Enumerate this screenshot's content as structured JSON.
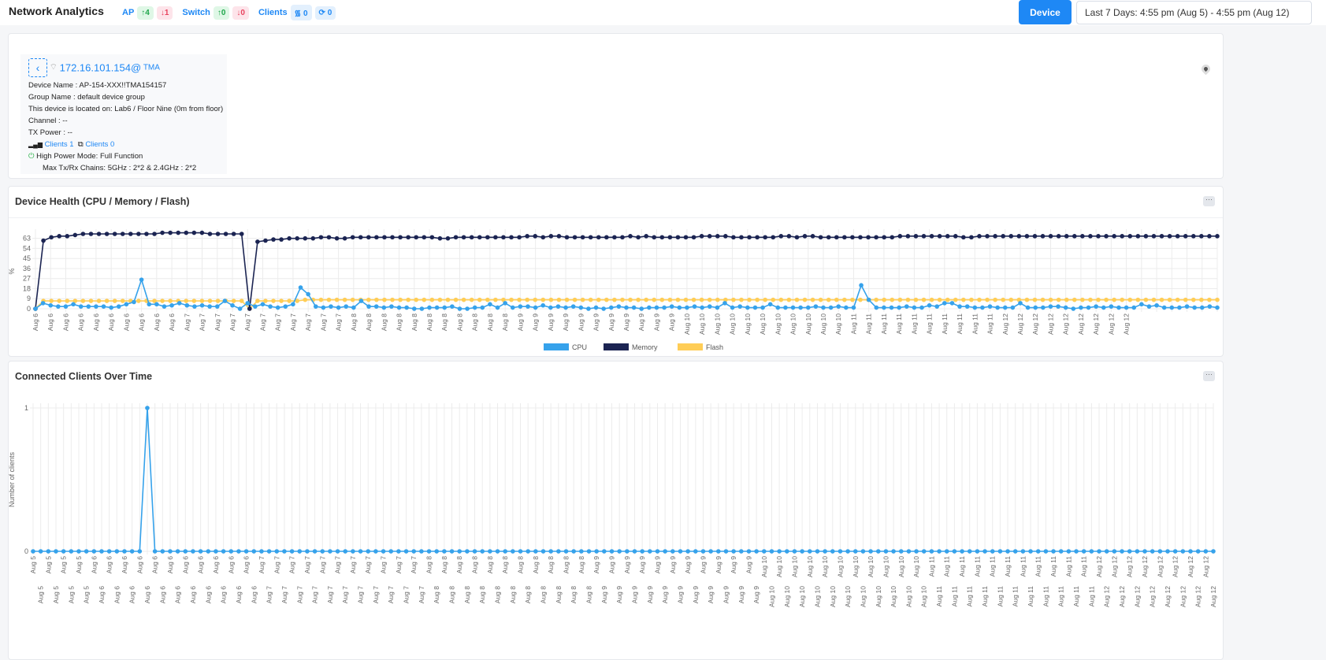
{
  "header": {
    "title": "Network Analytics",
    "ap_label": "AP",
    "ap_up": "4",
    "ap_down": "1",
    "switch_label": "Switch",
    "switch_up": "0",
    "switch_down": "0",
    "clients_label": "Clients",
    "clients_wifi": "0",
    "clients_wired": "0",
    "device_button": "Device",
    "date_range": "Last 7 Days: 4:55 pm (Aug 5) - 4:55 pm (Aug 12)"
  },
  "device": {
    "ip": "172.16.101.154@",
    "site": "TMA",
    "name": "Device Name : AP-154-XXX!!TMA154157",
    "group": "Group Name : default device group",
    "location": "This device is located on: Lab6 / Floor Nine (0m from floor)",
    "channel": "Channel : --",
    "tx_power": "TX Power : --",
    "wireless_clients": "Clients 1",
    "wired_clients": "Clients 0",
    "power_mode": "High Power Mode: Full Function",
    "chains": "Max Tx/Rx Chains: 5GHz : 2*2 & 2.4GHz : 2*2"
  },
  "health": {
    "title": "Device Health (CPU / Memory / Flash)",
    "more": "···"
  },
  "clients_chart": {
    "title": "Connected Clients Over Time",
    "more": "···"
  },
  "colors": {
    "accent": "#1e88f5",
    "cpu": "#36a2eb",
    "memory": "#1b2452",
    "flash": "#ffcd56"
  },
  "chart_data": [
    {
      "type": "line",
      "ylabel": "%",
      "yticks": [
        0,
        9,
        18,
        27,
        36,
        45,
        54,
        63
      ],
      "ylim": [
        0,
        67
      ],
      "grid": true,
      "legend": "bottom",
      "x_labels": [
        "Aug 6",
        "Aug 6",
        "Aug 6",
        "Aug 6",
        "Aug 6",
        "Aug 6",
        "Aug 6",
        "Aug 6",
        "Aug 6",
        "Aug 6",
        "Aug 7",
        "Aug 7",
        "Aug 7",
        "Aug 7",
        "Aug 7",
        "Aug 7",
        "Aug 7",
        "Aug 7",
        "Aug 7",
        "Aug 7",
        "Aug 7",
        "Aug 8",
        "Aug 8",
        "Aug 8",
        "Aug 8",
        "Aug 8",
        "Aug 8",
        "Aug 8",
        "Aug 8",
        "Aug 8",
        "Aug 8",
        "Aug 8",
        "Aug 9",
        "Aug 9",
        "Aug 9",
        "Aug 9",
        "Aug 9",
        "Aug 9",
        "Aug 9",
        "Aug 9",
        "Aug 9",
        "Aug 9",
        "Aug 9",
        "Aug 10",
        "Aug 10",
        "Aug 10",
        "Aug 10",
        "Aug 10",
        "Aug 10",
        "Aug 10",
        "Aug 10",
        "Aug 10",
        "Aug 10",
        "Aug 10",
        "Aug 11",
        "Aug 11",
        "Aug 11",
        "Aug 11",
        "Aug 11",
        "Aug 11",
        "Aug 11",
        "Aug 11",
        "Aug 11",
        "Aug 11",
        "Aug 12",
        "Aug 12",
        "Aug 12",
        "Aug 12",
        "Aug 12",
        "Aug 12",
        "Aug 12",
        "Aug 12",
        "Aug 12"
      ],
      "series": [
        {
          "name": "CPU",
          "values": [
            0,
            5,
            3,
            2,
            2,
            4,
            2,
            2,
            2,
            2,
            1,
            2,
            4,
            6,
            26,
            4,
            4,
            2,
            3,
            5,
            3,
            2,
            3,
            2,
            2,
            7,
            3,
            0,
            5,
            2,
            4,
            2,
            1,
            2,
            4,
            19,
            13,
            2,
            1,
            2,
            1,
            2,
            1,
            7,
            2,
            2,
            1,
            2,
            1,
            1,
            0,
            0,
            1,
            1,
            1,
            2,
            0,
            0,
            1,
            1,
            4,
            1,
            5,
            1,
            2,
            2,
            1,
            3,
            1,
            2,
            1,
            2,
            1,
            0,
            1,
            0,
            1,
            2,
            1,
            1,
            0,
            1,
            1,
            1,
            2,
            1,
            1,
            2,
            1,
            2,
            1,
            5,
            1,
            2,
            1,
            1,
            1,
            4,
            1,
            1,
            1,
            1,
            1,
            2,
            1,
            1,
            2,
            1,
            1,
            21,
            8,
            1,
            1,
            1,
            1,
            2,
            1,
            1,
            3,
            2,
            5,
            5,
            2,
            2,
            1,
            1,
            2,
            1,
            1,
            1,
            5,
            1,
            1,
            1,
            2,
            2,
            1,
            0,
            1,
            1,
            2,
            1,
            2,
            1,
            1,
            1,
            4,
            2,
            3,
            1,
            1,
            1,
            2,
            1,
            1,
            2,
            1
          ]
        },
        {
          "name": "Memory",
          "values": [
            0,
            61,
            64,
            65,
            65,
            66,
            67,
            67,
            67,
            67,
            67,
            67,
            67,
            67,
            67,
            67,
            68,
            68,
            68,
            68,
            68,
            68,
            67,
            67,
            67,
            67,
            67,
            0,
            60,
            61,
            62,
            62,
            63,
            63,
            63,
            63,
            64,
            64,
            63,
            63,
            64,
            64,
            64,
            64,
            64,
            64,
            64,
            64,
            64,
            64,
            64,
            63,
            63,
            64,
            64,
            64,
            64,
            64,
            64,
            64,
            64,
            64,
            65,
            65,
            64,
            65,
            65,
            64,
            64,
            64,
            64,
            64,
            64,
            64,
            64,
            65,
            64,
            65,
            64,
            64,
            64,
            64,
            64,
            64,
            65,
            65,
            65,
            65,
            64,
            64,
            64,
            64,
            64,
            64,
            65,
            65,
            64,
            65,
            65,
            64,
            64,
            64,
            64,
            64,
            64,
            64,
            64,
            64,
            64,
            65,
            65,
            65,
            65,
            65,
            65,
            65,
            65,
            64,
            64,
            65,
            65,
            65,
            65,
            65,
            65,
            65,
            65,
            65,
            65,
            65,
            65,
            65,
            65,
            65,
            65,
            65,
            65,
            65,
            65,
            65,
            65,
            65,
            65,
            65,
            65,
            65,
            65,
            65,
            65,
            65
          ]
        },
        {
          "name": "Flash",
          "values": [
            0,
            7,
            7,
            7,
            7,
            7,
            7,
            7,
            7,
            7,
            7,
            7,
            7,
            7,
            7,
            7,
            7,
            7,
            7,
            7,
            7,
            7,
            7,
            7,
            7,
            7,
            7,
            0,
            7,
            7,
            7,
            7,
            7,
            7,
            8,
            8,
            8,
            8,
            8,
            8,
            8,
            8,
            8,
            8,
            8,
            8,
            8,
            8,
            8,
            8,
            8,
            8,
            8,
            8,
            8,
            8,
            8,
            8,
            8,
            8,
            8,
            8,
            8,
            8,
            8,
            8,
            8,
            8,
            8,
            8,
            8,
            8,
            8,
            8,
            8,
            8,
            8,
            8,
            8,
            8,
            8,
            8,
            8,
            8,
            8,
            8,
            8,
            8,
            8,
            8,
            8,
            8,
            8,
            8,
            8,
            8,
            8,
            8,
            8,
            8,
            8,
            8,
            8,
            8,
            8,
            8,
            8,
            8,
            8,
            8,
            8,
            8,
            8,
            8,
            8,
            8,
            8,
            8,
            8,
            8,
            8,
            8,
            8,
            8,
            8,
            8,
            8,
            8,
            8,
            8,
            8,
            8,
            8,
            8,
            8,
            8,
            8,
            8,
            8,
            8,
            8,
            8,
            8,
            8,
            8,
            8,
            8,
            8,
            8,
            8
          ]
        }
      ]
    },
    {
      "type": "line",
      "ylabel": "Number of clients",
      "yticks": [
        0,
        1
      ],
      "ylim": [
        0,
        1
      ],
      "grid": true,
      "x_labels": [
        "Aug 5",
        "Aug 5",
        "Aug 5",
        "Aug 5",
        "Aug 5",
        "Aug 5",
        "Aug 5",
        "Aug 5",
        "Aug 6",
        "Aug 6",
        "Aug 6",
        "Aug 6",
        "Aug 6",
        "Aug 6",
        "Aug 6",
        "Aug 6",
        "Aug 6",
        "Aug 6",
        "Aug 6",
        "Aug 6",
        "Aug 6",
        "Aug 6",
        "Aug 6",
        "Aug 6",
        "Aug 6",
        "Aug 6",
        "Aug 6",
        "Aug 6",
        "Aug 6",
        "Aug 6",
        "Aug 7",
        "Aug 7",
        "Aug 7",
        "Aug 7",
        "Aug 7",
        "Aug 7",
        "Aug 7",
        "Aug 7",
        "Aug 7",
        "Aug 7",
        "Aug 7",
        "Aug 7",
        "Aug 7",
        "Aug 7",
        "Aug 7",
        "Aug 7",
        "Aug 7",
        "Aug 7",
        "Aug 7",
        "Aug 7",
        "Aug 7",
        "Aug 7",
        "Aug 8",
        "Aug 8",
        "Aug 8",
        "Aug 8",
        "Aug 8",
        "Aug 8",
        "Aug 8",
        "Aug 8",
        "Aug 8",
        "Aug 8",
        "Aug 8",
        "Aug 8",
        "Aug 8",
        "Aug 8",
        "Aug 8",
        "Aug 8",
        "Aug 8",
        "Aug 8",
        "Aug 8",
        "Aug 8",
        "Aug 8",
        "Aug 8",
        "Aug 9",
        "Aug 9",
        "Aug 9",
        "Aug 9",
        "Aug 9",
        "Aug 9",
        "Aug 9",
        "Aug 9",
        "Aug 9",
        "Aug 9",
        "Aug 9",
        "Aug 9",
        "Aug 9",
        "Aug 9",
        "Aug 9",
        "Aug 9",
        "Aug 9",
        "Aug 9",
        "Aug 9",
        "Aug 9",
        "Aug 9",
        "Aug 9",
        "Aug 10",
        "Aug 10",
        "Aug 10",
        "Aug 10",
        "Aug 10",
        "Aug 10",
        "Aug 10",
        "Aug 10",
        "Aug 10",
        "Aug 10",
        "Aug 10",
        "Aug 10",
        "Aug 10",
        "Aug 10",
        "Aug 10",
        "Aug 10",
        "Aug 10",
        "Aug 10",
        "Aug 10",
        "Aug 10",
        "Aug 10",
        "Aug 10",
        "Aug 11",
        "Aug 11",
        "Aug 11",
        "Aug 11",
        "Aug 11",
        "Aug 11",
        "Aug 11",
        "Aug 11",
        "Aug 11",
        "Aug 11",
        "Aug 11",
        "Aug 11",
        "Aug 11",
        "Aug 11",
        "Aug 11",
        "Aug 11",
        "Aug 11",
        "Aug 11",
        "Aug 11",
        "Aug 11",
        "Aug 11",
        "Aug 11",
        "Aug 12",
        "Aug 12",
        "Aug 12",
        "Aug 12",
        "Aug 12",
        "Aug 12",
        "Aug 12",
        "Aug 12",
        "Aug 12",
        "Aug 12",
        "Aug 12",
        "Aug 12",
        "Aug 12",
        "Aug 12",
        "Aug 12",
        "Aug 12"
      ],
      "series": [
        {
          "values": [
            0,
            0,
            0,
            0,
            0,
            0,
            0,
            0,
            0,
            0,
            0,
            0,
            0,
            0,
            0,
            1,
            0,
            0,
            0,
            0,
            0,
            0,
            0,
            0,
            0,
            0,
            0,
            0,
            0,
            0,
            0,
            0,
            0,
            0,
            0,
            0,
            0,
            0,
            0,
            0,
            0,
            0,
            0,
            0,
            0,
            0,
            0,
            0,
            0,
            0,
            0,
            0,
            0,
            0,
            0,
            0,
            0,
            0,
            0,
            0,
            0,
            0,
            0,
            0,
            0,
            0,
            0,
            0,
            0,
            0,
            0,
            0,
            0,
            0,
            0,
            0,
            0,
            0,
            0,
            0,
            0,
            0,
            0,
            0,
            0,
            0,
            0,
            0,
            0,
            0,
            0,
            0,
            0,
            0,
            0,
            0,
            0,
            0,
            0,
            0,
            0,
            0,
            0,
            0,
            0,
            0,
            0,
            0,
            0,
            0,
            0,
            0,
            0,
            0,
            0,
            0,
            0,
            0,
            0,
            0,
            0,
            0,
            0,
            0,
            0,
            0,
            0,
            0,
            0,
            0,
            0,
            0,
            0,
            0,
            0,
            0,
            0,
            0,
            0,
            0,
            0,
            0,
            0,
            0,
            0,
            0,
            0,
            0,
            0,
            0,
            0,
            0,
            0,
            0,
            0,
            0
          ]
        }
      ]
    }
  ]
}
